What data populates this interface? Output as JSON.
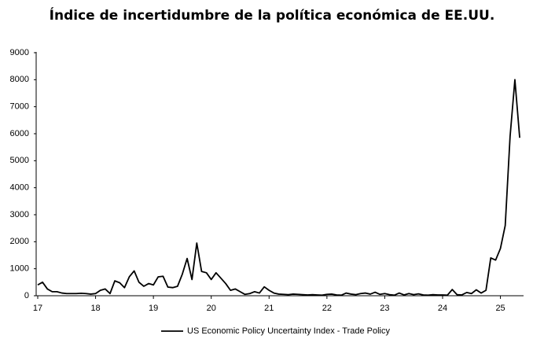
{
  "chart_data": {
    "type": "line",
    "title": "Índice de incertidumbre de la política económica de EE.UU.",
    "x": [
      17,
      17.083,
      17.167,
      17.25,
      17.333,
      17.417,
      17.5,
      17.583,
      17.667,
      17.75,
      17.833,
      17.917,
      18,
      18.083,
      18.167,
      18.25,
      18.333,
      18.417,
      18.5,
      18.583,
      18.667,
      18.75,
      18.833,
      18.917,
      19,
      19.083,
      19.167,
      19.25,
      19.333,
      19.417,
      19.5,
      19.583,
      19.667,
      19.75,
      19.833,
      19.917,
      20,
      20.083,
      20.167,
      20.25,
      20.333,
      20.417,
      20.5,
      20.583,
      20.667,
      20.75,
      20.833,
      20.917,
      21,
      21.083,
      21.167,
      21.25,
      21.333,
      21.417,
      21.5,
      21.583,
      21.667,
      21.75,
      21.833,
      21.917,
      22,
      22.083,
      22.167,
      22.25,
      22.333,
      22.417,
      22.5,
      22.583,
      22.667,
      22.75,
      22.833,
      22.917,
      23,
      23.083,
      23.167,
      23.25,
      23.333,
      23.417,
      23.5,
      23.583,
      23.667,
      23.75,
      23.833,
      23.917,
      24,
      24.083,
      24.167,
      24.25,
      24.333,
      24.417,
      24.5,
      24.583,
      24.667,
      24.75,
      24.833,
      24.917,
      25,
      25.083,
      25.167,
      25.25,
      25.333
    ],
    "series": [
      {
        "name": "US Economic Policy Uncertainty Index - Trade Policy",
        "color": "#000000",
        "values": [
          400,
          500,
          250,
          150,
          150,
          100,
          80,
          80,
          80,
          90,
          80,
          60,
          80,
          200,
          250,
          80,
          550,
          480,
          300,
          700,
          920,
          500,
          350,
          450,
          400,
          700,
          720,
          320,
          300,
          350,
          800,
          1380,
          600,
          1950,
          900,
          850,
          600,
          850,
          650,
          450,
          200,
          250,
          150,
          50,
          80,
          150,
          100,
          330,
          200,
          100,
          60,
          50,
          40,
          60,
          50,
          40,
          30,
          40,
          30,
          20,
          50,
          60,
          30,
          20,
          100,
          60,
          40,
          80,
          100,
          60,
          130,
          50,
          80,
          40,
          20,
          100,
          30,
          80,
          40,
          70,
          30,
          20,
          40,
          30,
          30,
          20,
          230,
          40,
          30,
          120,
          80,
          220,
          100,
          200,
          1400,
          1320,
          1750,
          2600,
          5900,
          8000,
          5850
        ]
      }
    ],
    "xlim": [
      17,
      25.4
    ],
    "xticks": [
      17,
      18,
      19,
      20,
      21,
      22,
      23,
      24,
      25
    ],
    "ylim": [
      0,
      9000
    ],
    "yticks": [
      0,
      1000,
      2000,
      3000,
      4000,
      5000,
      6000,
      7000,
      8000,
      9000
    ],
    "grid": false,
    "legend": "bottom"
  }
}
